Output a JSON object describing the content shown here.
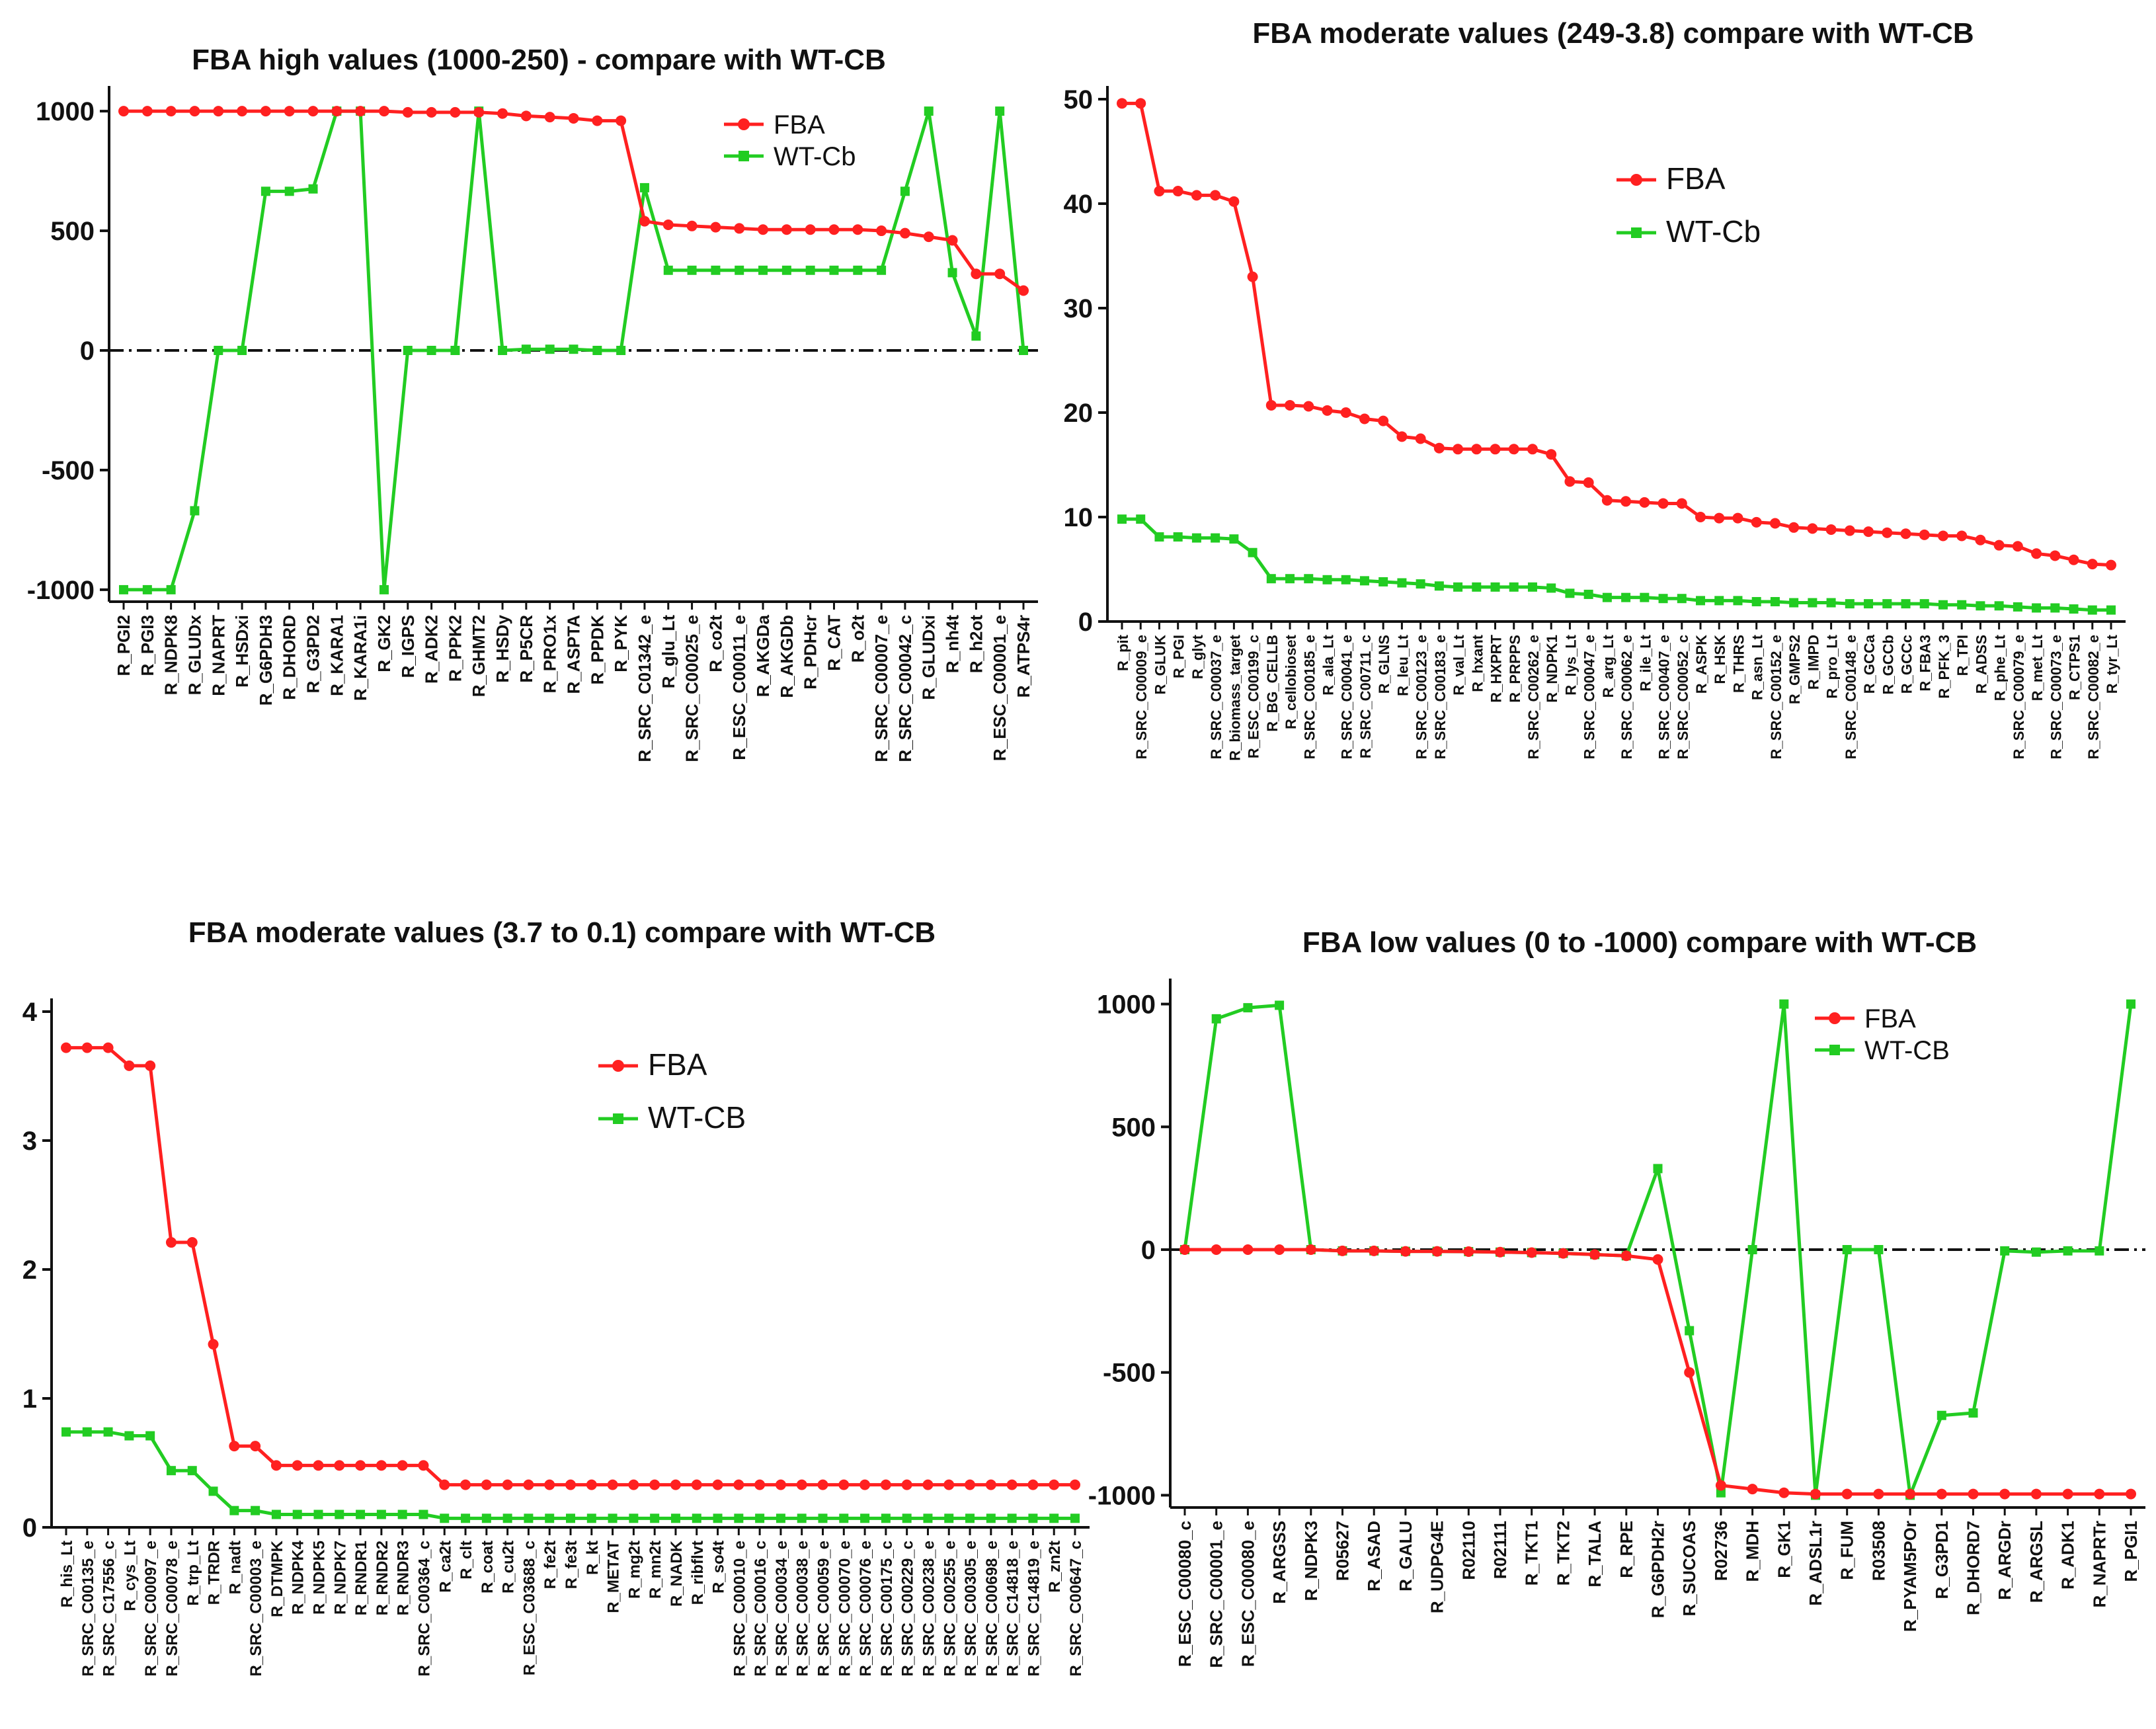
{
  "colors": {
    "fba": "#ff2020",
    "wt": "#22cc22",
    "axis": "#111111",
    "zero": "#111111"
  },
  "chart_data": [
    {
      "type": "line",
      "title": "FBA high values (1000-250) - compare with WT-CB",
      "xlabel": "",
      "ylabel": "",
      "ylim": [
        -1050,
        1050
      ],
      "yticks": [
        1000,
        500,
        0,
        -500,
        -1000
      ],
      "zero_line": true,
      "legend_position": "top-right",
      "categories": [
        "R_PGI2",
        "R_PGI3",
        "R_NDPK8",
        "R_GLUDx",
        "R_NAPRT",
        "R_HSDxi",
        "R_G6PDH3",
        "R_DHORD",
        "R_G3PD2",
        "R_KARA1",
        "R_KARA1i",
        "R_GK2",
        "R_IGPS",
        "R_ADK2",
        "R_PPK2",
        "R_GHMT2",
        "R_HSDy",
        "R_P5CR",
        "R_PRO1x",
        "R_ASPTA",
        "R_PPDK",
        "R_PYK",
        "R_SRC_C01342_e",
        "R_glu_Lt",
        "R_SRC_C00025_e",
        "R_co2t",
        "R_ESC_C00011_e",
        "R_AKGDa",
        "R_AKGDb",
        "R_PDHcr",
        "R_CAT",
        "R_o2t",
        "R_SRC_C00007_e",
        "R_SRC_C00042_c",
        "R_GLUDxi",
        "R_nh4t",
        "R_h2ot",
        "R_ESC_C00001_e",
        "R_ATPS4r"
      ],
      "series": [
        {
          "name": "FBA",
          "values": [
            1000,
            1000,
            1000,
            1000,
            1000,
            1000,
            1000,
            1000,
            1000,
            1000,
            1000,
            1000,
            995,
            995,
            995,
            995,
            990,
            980,
            975,
            970,
            960,
            960,
            540,
            525,
            520,
            515,
            510,
            505,
            505,
            505,
            505,
            505,
            500,
            490,
            475,
            460,
            320,
            320,
            250
          ]
        },
        {
          "name": "WT-Cb",
          "values": [
            -1000,
            -1000,
            -1000,
            -670,
            0,
            0,
            665,
            665,
            675,
            1000,
            1000,
            -1000,
            0,
            0,
            0,
            1000,
            0,
            5,
            5,
            5,
            0,
            0,
            680,
            335,
            335,
            335,
            335,
            335,
            335,
            335,
            335,
            335,
            335,
            665,
            1000,
            325,
            60,
            1000,
            0
          ]
        }
      ]
    },
    {
      "type": "line",
      "title": "FBA moderate values (249-3.8)  compare with WT-CB",
      "xlabel": "",
      "ylabel": "",
      "ylim": [
        0,
        50
      ],
      "yticks": [
        50,
        40,
        30,
        20,
        10,
        0
      ],
      "zero_line": false,
      "legend_position": "top-center",
      "categories": [
        "R_pit",
        "R_SRC_C00009_e",
        "R_GLUK",
        "R_PGI",
        "R_glyt",
        "R_SRC_C00037_e",
        "R_biomass_target",
        "R_ESC_C00199_c",
        "R_BG_CELLB",
        "R_cellobioset",
        "R_SRC_C00185_e",
        "R_ala_Lt",
        "R_SRC_C00041_e",
        "R_SRC_C00711_c",
        "R_GLNS",
        "R_leu_Lt",
        "R_SRC_C00123_e",
        "R_SRC_C00183_e",
        "R_val_Lt",
        "R_hxant",
        "R_HXPRT",
        "R_PRPPS",
        "R_SRC_C00262_e",
        "R_NDPK1",
        "R_lys_Lt",
        "R_SRC_C00047_e",
        "R_arg_Lt",
        "R_SRC_C00062_e",
        "R_ile_Lt",
        "R_SRC_C00407_e",
        "R_SRC_C00052_c",
        "R_ASPK",
        "R_HSK",
        "R_THRS",
        "R_asn_Lt",
        "R_SRC_C00152_e",
        "R_GMPS2",
        "R_IMPD",
        "R_pro_Lt",
        "R_SRC_C00148_e",
        "R_GCCa",
        "R_GCCb",
        "R_GCCc",
        "R_FBA3",
        "R_PFK_3",
        "R_TPI",
        "R_ADSS",
        "R_phe_Lt",
        "R_SRC_C00079_e",
        "R_met_Lt",
        "R_SRC_C00073_e",
        "R_CTPS1",
        "R_SRC_C00082_e",
        "R_tyr_Lt"
      ],
      "series": [
        {
          "name": "FBA",
          "values": [
            49.6,
            49.6,
            41.2,
            41.2,
            40.8,
            40.8,
            40.2,
            33.0,
            20.7,
            20.7,
            20.6,
            20.2,
            20.0,
            19.4,
            19.2,
            17.7,
            17.5,
            16.6,
            16.5,
            16.5,
            16.5,
            16.5,
            16.5,
            16.0,
            13.4,
            13.3,
            11.6,
            11.5,
            11.4,
            11.3,
            11.3,
            10.0,
            9.9,
            9.9,
            9.5,
            9.4,
            9.0,
            8.9,
            8.8,
            8.7,
            8.6,
            8.5,
            8.4,
            8.3,
            8.2,
            8.2,
            7.8,
            7.3,
            7.2,
            6.5,
            6.3,
            5.9,
            5.5,
            5.4
          ]
        },
        {
          "name": "WT-Cb",
          "values": [
            9.8,
            9.8,
            8.1,
            8.1,
            8.0,
            8.0,
            7.9,
            6.6,
            4.1,
            4.1,
            4.1,
            4.0,
            4.0,
            3.9,
            3.8,
            3.7,
            3.6,
            3.4,
            3.3,
            3.3,
            3.3,
            3.3,
            3.3,
            3.2,
            2.7,
            2.6,
            2.3,
            2.3,
            2.3,
            2.2,
            2.2,
            2.0,
            2.0,
            2.0,
            1.9,
            1.9,
            1.8,
            1.8,
            1.8,
            1.7,
            1.7,
            1.7,
            1.7,
            1.7,
            1.6,
            1.6,
            1.5,
            1.5,
            1.4,
            1.3,
            1.3,
            1.2,
            1.1,
            1.1
          ]
        }
      ]
    },
    {
      "type": "line",
      "title": "FBA moderate values (3.7 to 0.1) compare with WT-CB",
      "xlabel": "",
      "ylabel": "",
      "ylim": [
        0,
        4
      ],
      "yticks": [
        4,
        3,
        2,
        1,
        0
      ],
      "zero_line": false,
      "legend_position": "top-center",
      "categories": [
        "R_his_Lt",
        "R_SRC_C00135_e",
        "R_SRC_C17556_c",
        "R_cys_Lt",
        "R_SRC_C00097_e",
        "R_SRC_C00078_e",
        "R_trp_Lt",
        "R_TRDR",
        "R_nadt",
        "R_SRC_C00003_e",
        "R_DTMPK",
        "R_NDPK4",
        "R_NDPK5",
        "R_NDPK7",
        "R_RNDR1",
        "R_RNDR2",
        "R_RNDR3",
        "R_SRC_C00364_c",
        "R_ca2t",
        "R_clt",
        "R_coat",
        "R_cu2t",
        "R_ESC_C03688_c",
        "R_fe2t",
        "R_fe3t",
        "R_kt",
        "R_METAT",
        "R_mg2t",
        "R_mn2t",
        "R_NADK",
        "R_ribflvt",
        "R_so4t",
        "R_SRC_C00010_e",
        "R_SRC_C00016_c",
        "R_SRC_C00034_e",
        "R_SRC_C00038_e",
        "R_SRC_C00059_e",
        "R_SRC_C00070_e",
        "R_SRC_C00076_e",
        "R_SRC_C00175_c",
        "R_SRC_C00229_c",
        "R_SRC_C00238_e",
        "R_SRC_C00255_e",
        "R_SRC_C00305_e",
        "R_SRC_C00698_e",
        "R_SRC_C14818_e",
        "R_SRC_C14819_e",
        "R_zn2t",
        "R_SRC_C00647_c"
      ],
      "series": [
        {
          "name": "FBA",
          "values": [
            3.72,
            3.72,
            3.72,
            3.58,
            3.58,
            2.21,
            2.21,
            1.42,
            0.63,
            0.63,
            0.48,
            0.48,
            0.48,
            0.48,
            0.48,
            0.48,
            0.48,
            0.48,
            0.33,
            0.33,
            0.33,
            0.33,
            0.33,
            0.33,
            0.33,
            0.33,
            0.33,
            0.33,
            0.33,
            0.33,
            0.33,
            0.33,
            0.33,
            0.33,
            0.33,
            0.33,
            0.33,
            0.33,
            0.33,
            0.33,
            0.33,
            0.33,
            0.33,
            0.33,
            0.33,
            0.33,
            0.33,
            0.33,
            0.33
          ]
        },
        {
          "name": "WT-CB",
          "values": [
            0.74,
            0.74,
            0.74,
            0.71,
            0.71,
            0.44,
            0.44,
            0.28,
            0.13,
            0.13,
            0.1,
            0.1,
            0.1,
            0.1,
            0.1,
            0.1,
            0.1,
            0.1,
            0.07,
            0.07,
            0.07,
            0.07,
            0.07,
            0.07,
            0.07,
            0.07,
            0.07,
            0.07,
            0.07,
            0.07,
            0.07,
            0.07,
            0.07,
            0.07,
            0.07,
            0.07,
            0.07,
            0.07,
            0.07,
            0.07,
            0.07,
            0.07,
            0.07,
            0.07,
            0.07,
            0.07,
            0.07,
            0.07,
            0.07
          ]
        }
      ]
    },
    {
      "type": "line",
      "title": "FBA low values (0 to -1000) compare with WT-CB",
      "xlabel": "",
      "ylabel": "",
      "ylim": [
        -1050,
        1050
      ],
      "yticks": [
        1000,
        500,
        0,
        -500,
        -1000
      ],
      "zero_line": true,
      "legend_position": "top-right",
      "categories": [
        "R_ESC_C00080_c",
        "R_SRC_C00001_e",
        "R_ESC_C00080_e",
        "R_ARGSS",
        "R_NDPK3",
        "R05627",
        "R_ASAD",
        "R_GALU",
        "R_UDPG4E",
        "R02110",
        "R02111",
        "R_TKT1",
        "R_TKT2",
        "R_TALA",
        "R_RPE",
        "R_G6PDH2r",
        "R_SUCOAS",
        "R02736",
        "R_MDH",
        "R_GK1",
        "R_ADSL1r",
        "R_FUM",
        "R03508",
        "R_PYAM5POr",
        "R_G3PD1",
        "R_DHORD7",
        "R_ARGDr",
        "R_ARGSL",
        "R_ADK1",
        "R_NAPRTr",
        "R_PGI1"
      ],
      "series": [
        {
          "name": "FBA",
          "values": [
            0,
            0,
            0,
            0,
            0,
            -5,
            -5,
            -7,
            -7,
            -8,
            -10,
            -12,
            -15,
            -20,
            -25,
            -40,
            -500,
            -960,
            -975,
            -990,
            -995,
            -995,
            -995,
            -995,
            -995,
            -995,
            -995,
            -995,
            -995,
            -995,
            -995
          ]
        },
        {
          "name": "WT-CB",
          "values": [
            0,
            940,
            985,
            995,
            0,
            -5,
            -5,
            -7,
            -7,
            -8,
            -10,
            -12,
            -15,
            -20,
            -25,
            330,
            -330,
            -990,
            0,
            1000,
            -1000,
            0,
            0,
            -1000,
            -675,
            -665,
            -5,
            -10,
            -5,
            -5,
            1000
          ]
        }
      ]
    }
  ]
}
